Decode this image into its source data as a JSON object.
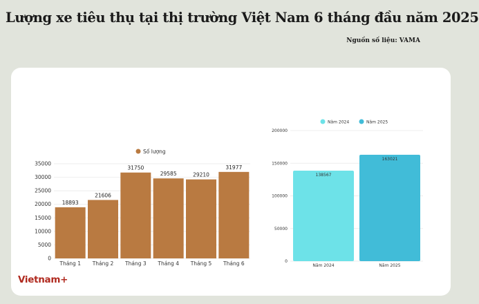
{
  "header": {
    "title": "Lượng xe tiêu thụ tại thị trường Việt Nam 6 tháng đầu năm 2025",
    "source": "Nguồn số liệu: VAMA"
  },
  "brand": {
    "logo_text": "Vietnam+"
  },
  "chart_data": [
    {
      "type": "bar",
      "legend": [
        "Số lượng"
      ],
      "legend_position": "top-center",
      "categories": [
        "Tháng 1",
        "Tháng 2",
        "Tháng 3",
        "Tháng 4",
        "Tháng 5",
        "Tháng 6"
      ],
      "series": [
        {
          "name": "Số lượng",
          "values": [
            18893,
            21606,
            31750,
            29585,
            29210,
            31977
          ],
          "color": "#b97a41"
        }
      ],
      "ylim": [
        0,
        35000
      ],
      "yticks": [
        0,
        5000,
        10000,
        15000,
        20000,
        25000,
        30000,
        35000
      ],
      "grid": true
    },
    {
      "type": "bar",
      "legend": [
        "Năm 2024",
        "Năm 2025"
      ],
      "legend_position": "top-center",
      "categories": [
        "Năm 2024",
        "Năm 2025"
      ],
      "values": [
        138567,
        163021
      ],
      "colors": [
        "#6de2e8",
        "#41bcd8"
      ],
      "ylim": [
        0,
        200000
      ],
      "yticks": [
        0,
        50000,
        100000,
        150000,
        200000
      ],
      "grid": true
    }
  ]
}
